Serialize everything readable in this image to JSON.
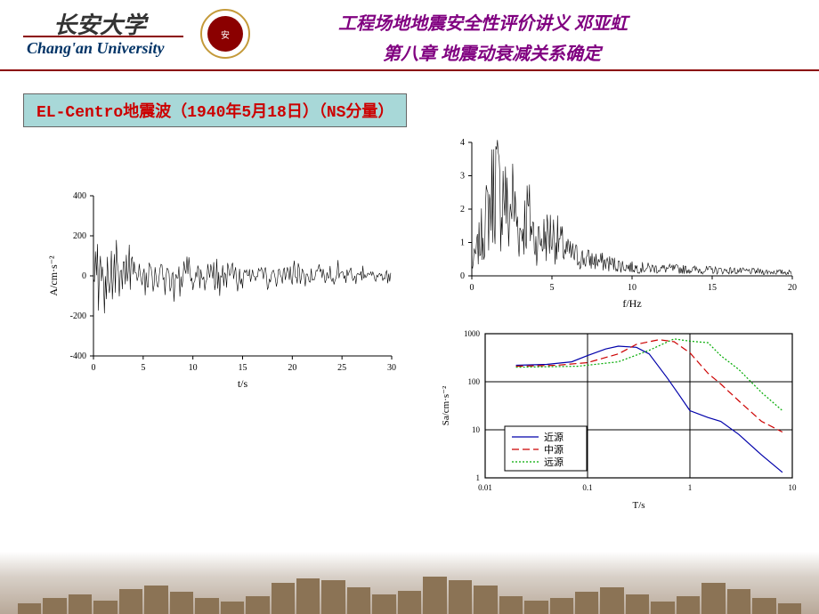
{
  "header": {
    "uni_cn": "长安大学",
    "uni_en": "Chang'an University",
    "seal_text": "安",
    "title1": "工程场地地震安全性评价讲义  邓亚虹",
    "title2": "第八章 地震动衰减关系确定"
  },
  "subtitle": "EL-Centro地震波（1940年5月18日）（NS分量）",
  "chart1": {
    "type": "line",
    "xlabel": "t/s",
    "ylabel": "A/cm·s⁻²",
    "xlim": [
      0,
      30
    ],
    "ylim": [
      -400,
      400
    ],
    "xticks": [
      0,
      5,
      10,
      15,
      20,
      25,
      30
    ],
    "yticks": [
      -400,
      -200,
      0,
      200,
      400
    ],
    "tick_fontsize": 10,
    "label_fontsize": 12,
    "line_color": "#000000",
    "line_width": 0.6,
    "background": "#ffffff",
    "axis_color": "#000000",
    "sample_dt": 0.1,
    "envelope_peaks": {
      "2": 340,
      "4": 260,
      "6": 200,
      "10": 150,
      "15": 120,
      "20": 100,
      "25": 80,
      "30": 70
    }
  },
  "chart2": {
    "type": "line",
    "xlabel": "f/Hz",
    "ylabel": "",
    "xlim": [
      0,
      20
    ],
    "ylim": [
      0,
      4
    ],
    "xticks": [
      0,
      5,
      10,
      15,
      20
    ],
    "yticks": [
      0,
      1,
      2,
      3,
      4
    ],
    "tick_fontsize": 10,
    "label_fontsize": 12,
    "line_color": "#000000",
    "line_width": 0.6,
    "background": "#ffffff",
    "axis_color": "#000000",
    "profile": [
      [
        0,
        0.3
      ],
      [
        0.5,
        1.2
      ],
      [
        1,
        2.2
      ],
      [
        1.3,
        3.0
      ],
      [
        1.5,
        3.5
      ],
      [
        1.8,
        2.5
      ],
      [
        2,
        3.2
      ],
      [
        2.3,
        1.8
      ],
      [
        2.5,
        2.8
      ],
      [
        3,
        1.5
      ],
      [
        3.5,
        2.2
      ],
      [
        4,
        1.2
      ],
      [
        5,
        1.5
      ],
      [
        6,
        0.8
      ],
      [
        7,
        0.6
      ],
      [
        8,
        0.5
      ],
      [
        10,
        0.3
      ],
      [
        12,
        0.25
      ],
      [
        15,
        0.2
      ],
      [
        18,
        0.15
      ],
      [
        20,
        0.12
      ]
    ]
  },
  "chart3": {
    "type": "loglog",
    "xlabel": "T/s",
    "ylabel": "Sa/cm·s⁻²",
    "xlim": [
      0.01,
      10
    ],
    "ylim": [
      1,
      1000
    ],
    "xticks": [
      0.01,
      0.1,
      1,
      10
    ],
    "yticks": [
      1,
      10,
      100,
      1000
    ],
    "tick_fontsize": 9,
    "label_fontsize": 11,
    "background": "#ffffff",
    "axis_color": "#000000",
    "grid_color": "#000000",
    "legend_pos": "lower-left",
    "series": [
      {
        "name": "近源",
        "color": "#0000aa",
        "dash": "solid",
        "width": 1.2,
        "pts": [
          [
            0.02,
            220
          ],
          [
            0.04,
            230
          ],
          [
            0.07,
            260
          ],
          [
            0.1,
            350
          ],
          [
            0.15,
            480
          ],
          [
            0.2,
            550
          ],
          [
            0.3,
            520
          ],
          [
            0.4,
            380
          ],
          [
            0.6,
            120
          ],
          [
            0.8,
            50
          ],
          [
            1,
            25
          ],
          [
            1.5,
            18
          ],
          [
            2,
            15
          ],
          [
            3,
            8
          ],
          [
            5,
            3
          ],
          [
            8,
            1.3
          ]
        ]
      },
      {
        "name": "中源",
        "color": "#cc0000",
        "dash": "8,4",
        "width": 1.2,
        "pts": [
          [
            0.02,
            210
          ],
          [
            0.05,
            220
          ],
          [
            0.1,
            250
          ],
          [
            0.2,
            380
          ],
          [
            0.3,
            600
          ],
          [
            0.5,
            750
          ],
          [
            0.7,
            680
          ],
          [
            1,
            400
          ],
          [
            1.5,
            150
          ],
          [
            2,
            90
          ],
          [
            3,
            40
          ],
          [
            5,
            15
          ],
          [
            8,
            9
          ]
        ]
      },
      {
        "name": "远源",
        "color": "#00aa00",
        "dash": "2,2",
        "width": 1.2,
        "pts": [
          [
            0.02,
            200
          ],
          [
            0.08,
            210
          ],
          [
            0.2,
            260
          ],
          [
            0.4,
            450
          ],
          [
            0.7,
            780
          ],
          [
            1,
            700
          ],
          [
            1.5,
            650
          ],
          [
            2,
            350
          ],
          [
            3,
            180
          ],
          [
            5,
            60
          ],
          [
            8,
            25
          ]
        ]
      }
    ]
  },
  "footer": {
    "building_heights": [
      12,
      18,
      22,
      15,
      28,
      32,
      25,
      18,
      14,
      20,
      35,
      40,
      38,
      30,
      22,
      26,
      42,
      38,
      32,
      20,
      15,
      18,
      25,
      30,
      22,
      14,
      20,
      35,
      28,
      18,
      12
    ]
  }
}
